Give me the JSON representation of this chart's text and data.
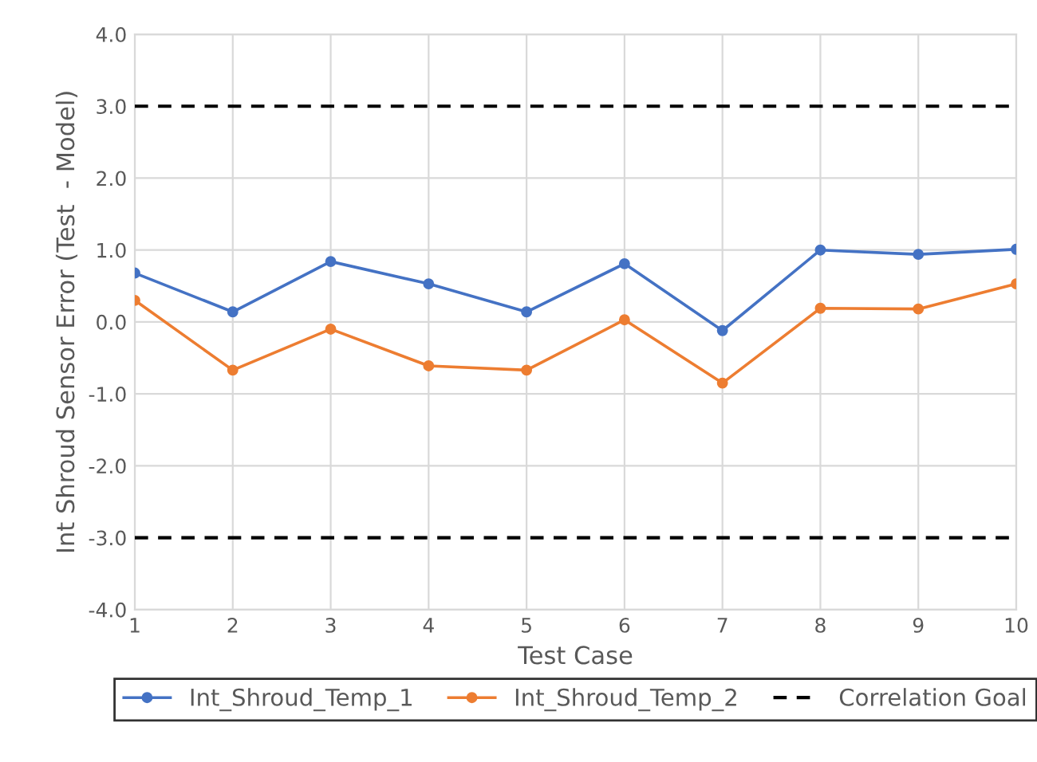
{
  "chart_data": {
    "type": "line",
    "xlabel": "Test Case",
    "ylabel": "Int Shroud Sensor Error (Test  - Model)",
    "x": [
      1,
      2,
      3,
      4,
      5,
      6,
      7,
      8,
      9,
      10
    ],
    "series": [
      {
        "name": "Int_Shroud_Temp_1",
        "color": "#4472c4",
        "values": [
          0.68,
          0.14,
          0.84,
          0.53,
          0.14,
          0.81,
          -0.12,
          1.0,
          0.94,
          1.01
        ]
      },
      {
        "name": "Int_Shroud_Temp_2",
        "color": "#ed7d31",
        "values": [
          0.3,
          -0.67,
          -0.1,
          -0.61,
          -0.67,
          0.03,
          -0.85,
          0.19,
          0.18,
          0.53
        ]
      },
      {
        "name": "Correlation Goal",
        "type": "line",
        "color": "#000000",
        "line_style": "dashed",
        "marker": "none",
        "values": [
          3.0,
          3.0,
          3.0,
          3.0,
          3.0,
          3.0,
          3.0,
          3.0,
          3.0,
          3.0
        ]
      },
      {
        "type": "line",
        "color": "#000000",
        "line_style": "dashed",
        "marker": "none",
        "values": [
          -3.0,
          -3.0,
          -3.0,
          -3.0,
          -3.0,
          -3.0,
          -3.0,
          -3.0,
          -3.0,
          -3.0
        ]
      }
    ],
    "xlim": [
      1,
      10
    ],
    "xticks": [
      1,
      2,
      3,
      4,
      5,
      6,
      7,
      8,
      9,
      10
    ],
    "ylim": [
      -4.0,
      4.0
    ],
    "yticks": [
      {
        "value": -4,
        "label": "-4.0"
      },
      {
        "value": -3,
        "label": "-3.0"
      },
      {
        "value": -2,
        "label": "-2.0"
      },
      {
        "value": -1,
        "label": "-1.0"
      },
      {
        "value": 0,
        "label": "0.0"
      },
      {
        "value": 1,
        "label": "1.0"
      },
      {
        "value": 2,
        "label": "2.0"
      },
      {
        "value": 3,
        "label": "3.0"
      },
      {
        "value": 4,
        "label": "4.0"
      }
    ],
    "grid": true,
    "legend": "bottom",
    "marker": "circle",
    "line_style": "solid"
  }
}
